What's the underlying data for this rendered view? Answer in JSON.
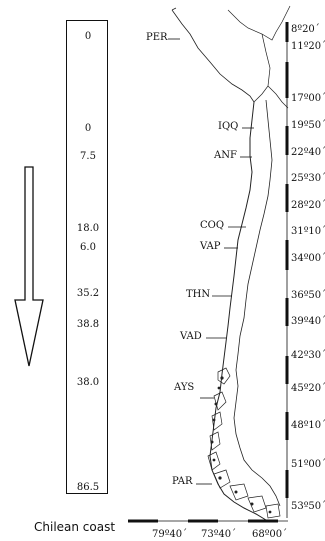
{
  "values": [
    {
      "site": "PER",
      "value": "0"
    },
    {
      "site": "IQQ",
      "value": "0"
    },
    {
      "site": "ANF",
      "value": "7.5"
    },
    {
      "site": "COQ",
      "value": "18.0"
    },
    {
      "site": "VAP",
      "value": "6.0"
    },
    {
      "site": "THN",
      "value": "35.2"
    },
    {
      "site": "VAD",
      "value": "38.8"
    },
    {
      "site": "AYS",
      "value": "38.0"
    },
    {
      "site": "PAR",
      "value": "86.5"
    }
  ],
  "latitudes": [
    "8º20´",
    "11º20´",
    "17º00´",
    "19º50´",
    "22º40´",
    "25º30´",
    "28º20´",
    "31º10´",
    "34º00´",
    "36º50´",
    "39º40´",
    "42º30´",
    "45º20´",
    "48º10´",
    "51º00´",
    "53º50´"
  ],
  "longitudes": [
    "79º40´",
    "73º40´",
    "68º00´"
  ],
  "caption": "Chilean coast",
  "colors": {
    "ink": "#111111",
    "land_stroke": "#222222"
  }
}
